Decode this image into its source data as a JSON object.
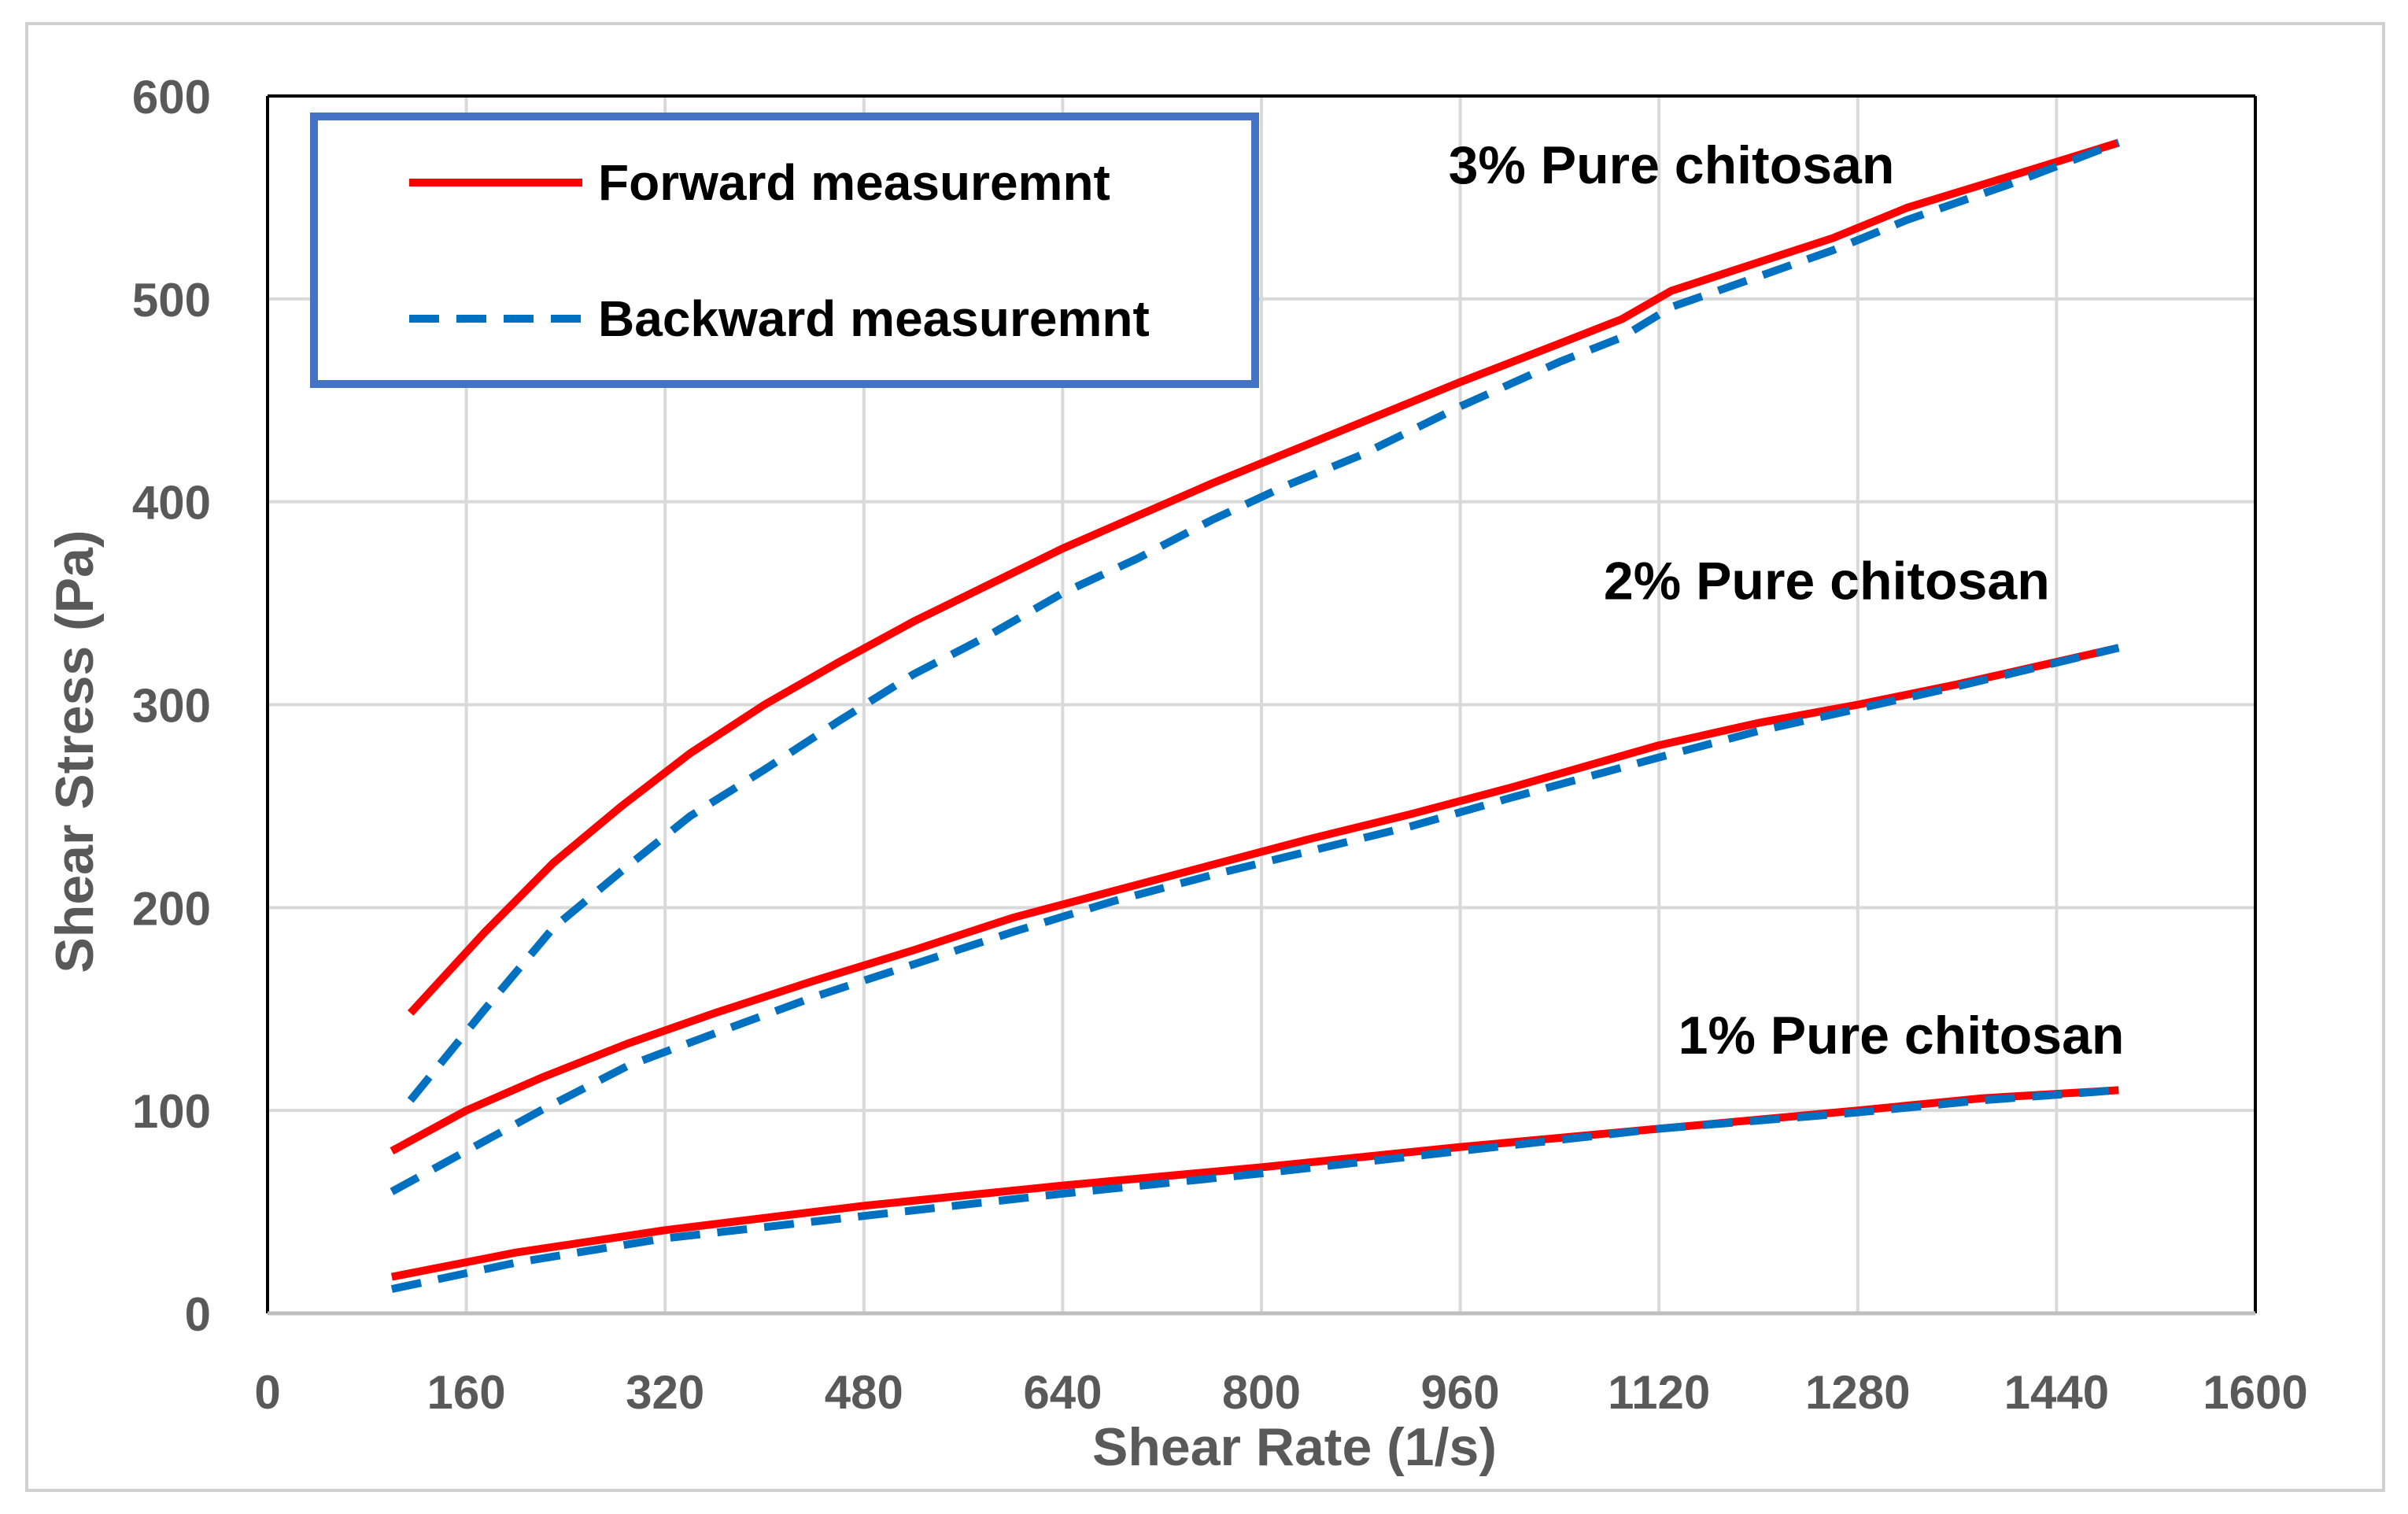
{
  "chart_data": {
    "type": "line",
    "title": "",
    "xlabel": "Shear Rate (1/s)",
    "ylabel": "Shear Stress (Pa)",
    "xlim": [
      0,
      1600
    ],
    "ylim": [
      0,
      600
    ],
    "xticks": [
      "0",
      "160",
      "320",
      "480",
      "640",
      "800",
      "960",
      "1120",
      "1280",
      "1440",
      "1600"
    ],
    "yticks": [
      "0",
      "100",
      "200",
      "300",
      "400",
      "500",
      "600"
    ],
    "grid": true,
    "legend_position": "top-left",
    "legend": [
      {
        "label": "Forward measuremnt",
        "color": "#FF0000",
        "style": "solid"
      },
      {
        "label": "Backward measuremnt",
        "color": "#0070C0",
        "style": "dashed"
      }
    ],
    "annotations": [
      {
        "text": "3% Pure chitosan",
        "x": 1130,
        "y": 557
      },
      {
        "text": "2% Pure chitosan",
        "x": 1255,
        "y": 352
      },
      {
        "text": "1% Pure chitosan",
        "x": 1315,
        "y": 128
      }
    ],
    "series": [
      {
        "name": "3% Pure chitosan - Forward",
        "color": "#FF0000",
        "style": "solid",
        "x": [
          115,
          175,
          230,
          285,
          340,
          400,
          460,
          520,
          580,
          640,
          700,
          760,
          820,
          880,
          960,
          1040,
          1090,
          1130,
          1200,
          1260,
          1320,
          1400,
          1490
        ],
        "y": [
          148,
          188,
          222,
          250,
          276,
          300,
          321,
          341,
          359,
          377,
          393,
          409,
          424,
          439,
          459,
          478,
          490,
          504,
          518,
          530,
          545,
          560,
          577
        ]
      },
      {
        "name": "3% Pure chitosan - Backward",
        "color": "#0070C0",
        "style": "dashed",
        "x": [
          115,
          175,
          230,
          285,
          340,
          400,
          460,
          520,
          580,
          640,
          700,
          760,
          820,
          880,
          960,
          1040,
          1090,
          1130,
          1200,
          1260,
          1320,
          1400,
          1490
        ],
        "y": [
          105,
          150,
          190,
          218,
          245,
          268,
          292,
          315,
          334,
          355,
          372,
          391,
          408,
          423,
          447,
          469,
          481,
          496,
          511,
          524,
          539,
          556,
          577
        ]
      },
      {
        "name": "2% Pure chitosan - Forward",
        "color": "#FF0000",
        "style": "solid",
        "x": [
          100,
          160,
          220,
          290,
          360,
          440,
          520,
          600,
          680,
          760,
          840,
          920,
          1000,
          1120,
          1200,
          1280,
          1360,
          1490
        ],
        "y": [
          80,
          100,
          116,
          133,
          148,
          164,
          179,
          195,
          208,
          221,
          234,
          246,
          259,
          280,
          291,
          300,
          310,
          328
        ]
      },
      {
        "name": "2% Pure chitosan - Backward",
        "color": "#0070C0",
        "style": "dashed",
        "x": [
          100,
          160,
          220,
          290,
          360,
          440,
          520,
          600,
          680,
          760,
          840,
          920,
          1000,
          1120,
          1200,
          1280,
          1360,
          1490
        ],
        "y": [
          60,
          80,
          100,
          122,
          138,
          156,
          172,
          188,
          203,
          216,
          228,
          240,
          254,
          274,
          287,
          298,
          309,
          328
        ]
      },
      {
        "name": "1% Pure chitosan - Forward",
        "color": "#FF0000",
        "style": "solid",
        "x": [
          100,
          200,
          320,
          480,
          640,
          800,
          960,
          1120,
          1280,
          1380,
          1490
        ],
        "y": [
          18,
          30,
          41,
          53,
          63,
          72,
          82,
          91,
          100,
          106,
          110
        ]
      },
      {
        "name": "1% Pure chitosan - Backward",
        "color": "#0070C0",
        "style": "dashed",
        "x": [
          100,
          200,
          320,
          480,
          640,
          800,
          960,
          1120,
          1280,
          1380,
          1490
        ],
        "y": [
          12,
          25,
          37,
          48,
          59,
          69,
          80,
          91,
          99,
          105,
          110
        ]
      }
    ]
  }
}
